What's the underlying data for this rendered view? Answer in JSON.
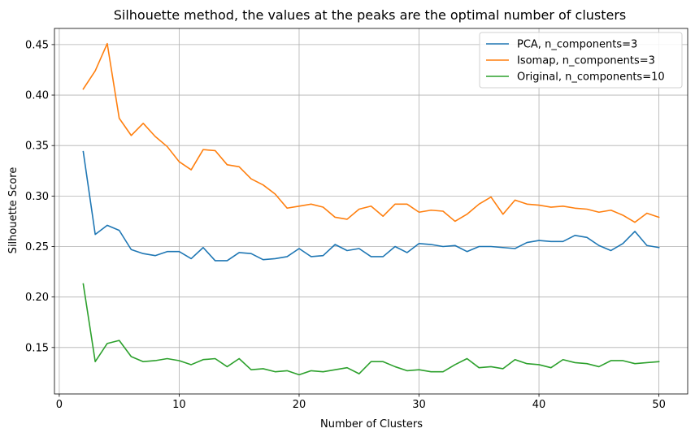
{
  "chart_data": {
    "type": "line",
    "title": "Silhouette method, the values at the peaks are the optimal number of clusters",
    "xlabel": "Number of Clusters",
    "ylabel": "Silhouette Score",
    "xlim": [
      -0.4,
      52.4
    ],
    "ylim": [
      0.104,
      0.466
    ],
    "xticks": [
      0,
      10,
      20,
      30,
      40,
      50
    ],
    "yticks": [
      0.15,
      0.2,
      0.25,
      0.3,
      0.35,
      0.4,
      0.45
    ],
    "grid": true,
    "legend_position": "top-right",
    "x": [
      2,
      3,
      4,
      5,
      6,
      7,
      8,
      9,
      10,
      11,
      12,
      13,
      14,
      15,
      16,
      17,
      18,
      19,
      20,
      21,
      22,
      23,
      24,
      25,
      26,
      27,
      28,
      29,
      30,
      31,
      32,
      33,
      34,
      35,
      36,
      37,
      38,
      39,
      40,
      41,
      42,
      43,
      44,
      45,
      46,
      47,
      48,
      49,
      50
    ],
    "series": [
      {
        "name": "PCA, n_components=3",
        "color": "#1f77b4",
        "values": [
          0.344,
          0.262,
          0.271,
          0.266,
          0.247,
          0.243,
          0.241,
          0.245,
          0.245,
          0.238,
          0.249,
          0.236,
          0.236,
          0.244,
          0.243,
          0.237,
          0.238,
          0.24,
          0.248,
          0.24,
          0.241,
          0.252,
          0.246,
          0.248,
          0.24,
          0.24,
          0.25,
          0.244,
          0.253,
          0.252,
          0.25,
          0.251,
          0.245,
          0.25,
          0.25,
          0.249,
          0.248,
          0.254,
          0.256,
          0.255,
          0.255,
          0.261,
          0.259,
          0.251,
          0.246,
          0.253,
          0.265,
          0.251,
          0.249
        ]
      },
      {
        "name": "Isomap, n_components=3",
        "color": "#ff7f0e",
        "values": [
          0.406,
          0.424,
          0.451,
          0.377,
          0.36,
          0.372,
          0.359,
          0.349,
          0.334,
          0.326,
          0.346,
          0.345,
          0.331,
          0.329,
          0.317,
          0.311,
          0.302,
          0.288,
          0.29,
          0.292,
          0.289,
          0.279,
          0.277,
          0.287,
          0.29,
          0.28,
          0.292,
          0.292,
          0.284,
          0.286,
          0.285,
          0.275,
          0.282,
          0.292,
          0.299,
          0.282,
          0.296,
          0.292,
          0.291,
          0.289,
          0.29,
          0.288,
          0.287,
          0.284,
          0.286,
          0.281,
          0.274,
          0.283,
          0.279
        ]
      },
      {
        "name": "Original, n_components=10",
        "color": "#2ca02c",
        "values": [
          0.213,
          0.136,
          0.154,
          0.157,
          0.141,
          0.136,
          0.137,
          0.139,
          0.137,
          0.133,
          0.138,
          0.139,
          0.131,
          0.139,
          0.128,
          0.129,
          0.126,
          0.127,
          0.123,
          0.127,
          0.126,
          0.128,
          0.13,
          0.124,
          0.136,
          0.136,
          0.131,
          0.127,
          0.128,
          0.126,
          0.126,
          0.133,
          0.139,
          0.13,
          0.131,
          0.129,
          0.138,
          0.134,
          0.133,
          0.13,
          0.138,
          0.135,
          0.134,
          0.131,
          0.137,
          0.137,
          0.134,
          0.135,
          0.136
        ]
      }
    ]
  }
}
